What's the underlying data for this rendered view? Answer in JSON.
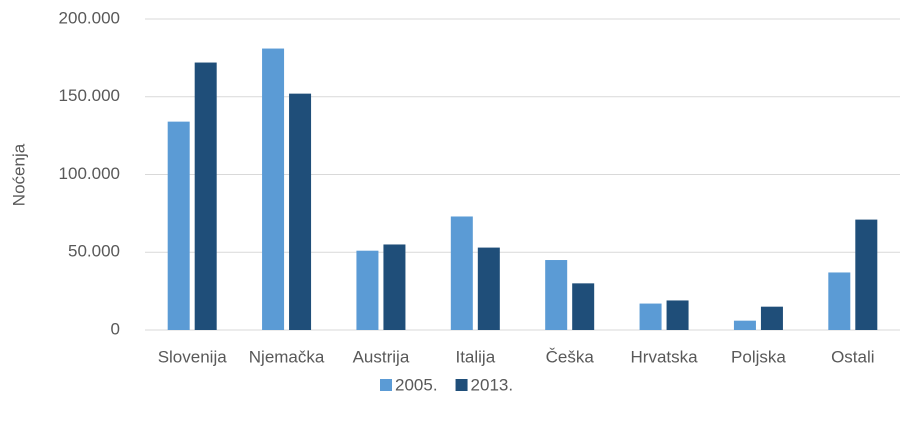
{
  "chart_data": {
    "type": "bar",
    "y_label": "Noćenja",
    "categories": [
      "Slovenija",
      "Njemačka",
      "Austrija",
      "Italija",
      "Češka",
      "Hrvatska",
      "Poljska",
      "Ostali"
    ],
    "series": [
      {
        "name": "2005.",
        "color": "#5b9bd5",
        "values": [
          134000,
          181000,
          51000,
          73000,
          45000,
          17000,
          6000,
          37000
        ]
      },
      {
        "name": "2013.",
        "color": "#1f4e79",
        "values": [
          172000,
          152000,
          55000,
          53000,
          30000,
          19000,
          15000,
          71000
        ]
      }
    ],
    "ylim": [
      0,
      200000
    ],
    "yticks": [
      0,
      {
        "value": 50000,
        "label": "50.000"
      },
      {
        "value": 100000,
        "label": "100.000"
      },
      {
        "value": 150000,
        "label": "150.000"
      },
      {
        "value": 200000,
        "label": "200.000"
      }
    ],
    "grid": true,
    "legend": "bottom"
  }
}
